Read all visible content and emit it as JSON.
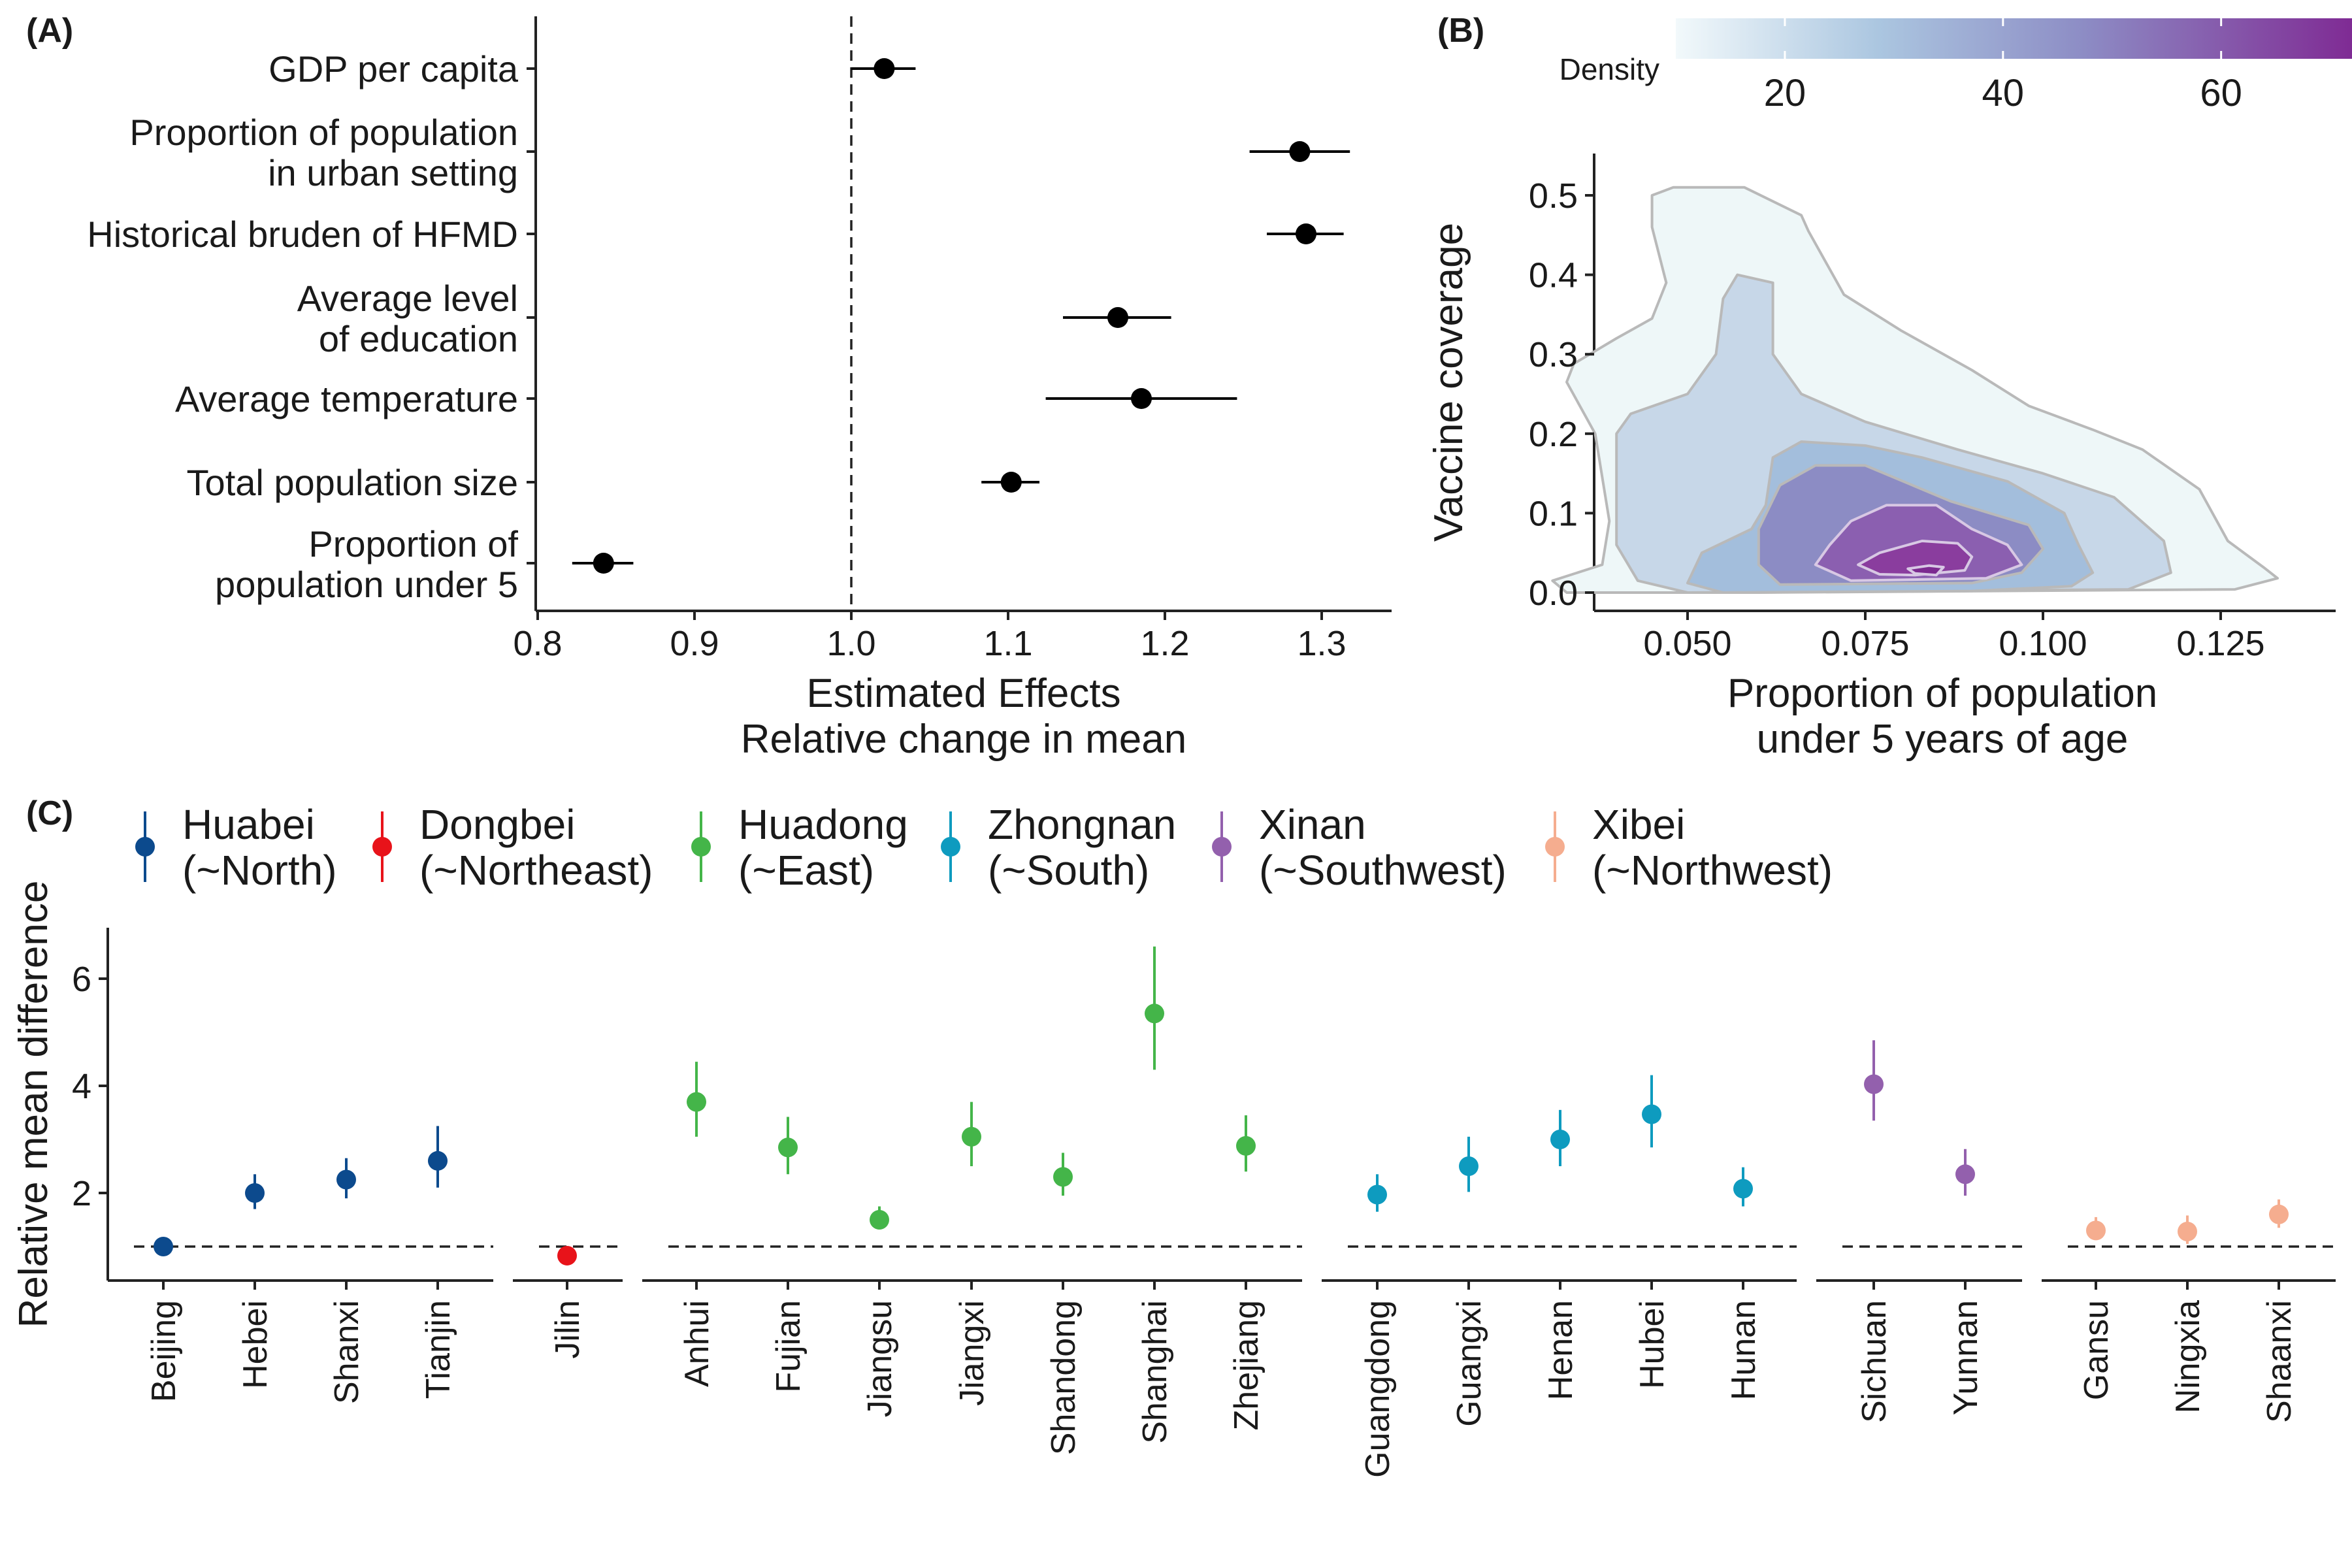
{
  "panels": {
    "a": "(A)",
    "b": "(B)",
    "c": "(C)"
  },
  "chart_data": [
    {
      "type": "forest",
      "panel": "(A)",
      "xlabel": "Estimated Effects",
      "xlabel2": "Relative change in mean",
      "xlim": [
        0.8,
        1.35
      ],
      "xticks": [
        "0.8",
        "0.9",
        "1.0",
        "1.1",
        "1.2",
        "1.3"
      ],
      "reference_line": 1.0,
      "rows": [
        {
          "label": [
            "GDP per capita"
          ],
          "estimate": 1.021,
          "low": 1.0,
          "high": 1.041
        },
        {
          "label": [
            "Proportion of population",
            "in urban setting"
          ],
          "estimate": 1.286,
          "low": 1.254,
          "high": 1.318
        },
        {
          "label": [
            "Historical bruden of HFMD"
          ],
          "estimate": 1.29,
          "low": 1.265,
          "high": 1.314
        },
        {
          "label": [
            "Average level",
            "of education"
          ],
          "estimate": 1.17,
          "low": 1.135,
          "high": 1.204
        },
        {
          "label": [
            "Average temperature"
          ],
          "estimate": 1.185,
          "low": 1.124,
          "high": 1.246
        },
        {
          "label": [
            "Total population size"
          ],
          "estimate": 1.102,
          "low": 1.083,
          "high": 1.12
        },
        {
          "label": [
            "Proportion of",
            "population under 5"
          ],
          "estimate": 0.842,
          "low": 0.822,
          "high": 0.861
        }
      ]
    },
    {
      "type": "density_contour",
      "panel": "(B)",
      "xlabel": "Proportion of population",
      "xlabel2": "under 5 years of age",
      "ylabel": "Vaccine coverage",
      "xlim": [
        0.025,
        0.14
      ],
      "ylim": [
        -0.02,
        0.55
      ],
      "xticks": [
        "0.050",
        "0.075",
        "0.100",
        "0.125"
      ],
      "yticks": [
        "0.0",
        "0.1",
        "0.2",
        "0.3",
        "0.4",
        "0.5"
      ],
      "legend_title": "Density",
      "legend_ticks": [
        "20",
        "40",
        "60"
      ],
      "legend_range": [
        10,
        72
      ],
      "colors": [
        "#eef7f8",
        "#c7d7e8",
        "#a3bedc",
        "#8c8cc4",
        "#8b5fb0",
        "#8a3d9e",
        "#7c2a90"
      ],
      "contour_levels": [
        10,
        20,
        30,
        40,
        50,
        60
      ],
      "contours": [
        [
          [
            0.048,
            0.51
          ],
          [
            0.058,
            0.51
          ],
          [
            0.066,
            0.475
          ],
          [
            0.067,
            0.455
          ],
          [
            0.072,
            0.375
          ],
          [
            0.08,
            0.33
          ],
          [
            0.09,
            0.28
          ],
          [
            0.098,
            0.235
          ],
          [
            0.107,
            0.205
          ],
          [
            0.114,
            0.18
          ],
          [
            0.122,
            0.13
          ],
          [
            0.126,
            0.065
          ],
          [
            0.131,
            0.032
          ],
          [
            0.133,
            0.018
          ],
          [
            0.127,
            0.004
          ],
          [
            0.06,
            0.0
          ],
          [
            0.033,
            0.0
          ],
          [
            0.031,
            0.015
          ],
          [
            0.038,
            0.035
          ],
          [
            0.039,
            0.09
          ],
          [
            0.037,
            0.2
          ],
          [
            0.033,
            0.265
          ],
          [
            0.034,
            0.288
          ],
          [
            0.04,
            0.32
          ],
          [
            0.045,
            0.345
          ],
          [
            0.047,
            0.39
          ],
          [
            0.045,
            0.46
          ],
          [
            0.045,
            0.5
          ],
          [
            0.048,
            0.51
          ]
        ],
        [
          [
            0.057,
            0.4
          ],
          [
            0.062,
            0.39
          ],
          [
            0.062,
            0.3
          ],
          [
            0.066,
            0.25
          ],
          [
            0.075,
            0.215
          ],
          [
            0.088,
            0.18
          ],
          [
            0.1,
            0.15
          ],
          [
            0.11,
            0.12
          ],
          [
            0.117,
            0.065
          ],
          [
            0.118,
            0.025
          ],
          [
            0.112,
            0.004
          ],
          [
            0.05,
            0.0
          ],
          [
            0.043,
            0.015
          ],
          [
            0.04,
            0.06
          ],
          [
            0.04,
            0.125
          ],
          [
            0.04,
            0.2
          ],
          [
            0.042,
            0.225
          ],
          [
            0.05,
            0.25
          ],
          [
            0.054,
            0.3
          ],
          [
            0.055,
            0.37
          ],
          [
            0.057,
            0.4
          ]
        ],
        [
          [
            0.061,
            0.11
          ],
          [
            0.062,
            0.17
          ],
          [
            0.066,
            0.19
          ],
          [
            0.075,
            0.185
          ],
          [
            0.083,
            0.17
          ],
          [
            0.095,
            0.14
          ],
          [
            0.103,
            0.1
          ],
          [
            0.105,
            0.06
          ],
          [
            0.107,
            0.025
          ],
          [
            0.104,
            0.008
          ],
          [
            0.09,
            0.002
          ],
          [
            0.055,
            0.0
          ],
          [
            0.05,
            0.012
          ],
          [
            0.052,
            0.05
          ],
          [
            0.059,
            0.08
          ],
          [
            0.061,
            0.11
          ]
        ],
        [
          [
            0.063,
            0.135
          ],
          [
            0.068,
            0.16
          ],
          [
            0.075,
            0.16
          ],
          [
            0.083,
            0.13
          ],
          [
            0.087,
            0.115
          ],
          [
            0.098,
            0.085
          ],
          [
            0.1,
            0.055
          ],
          [
            0.097,
            0.025
          ],
          [
            0.09,
            0.012
          ],
          [
            0.063,
            0.01
          ],
          [
            0.06,
            0.035
          ],
          [
            0.06,
            0.08
          ],
          [
            0.063,
            0.135
          ]
        ],
        [
          [
            0.073,
            0.09
          ],
          [
            0.078,
            0.11
          ],
          [
            0.085,
            0.11
          ],
          [
            0.09,
            0.08
          ],
          [
            0.095,
            0.06
          ],
          [
            0.097,
            0.035
          ],
          [
            0.092,
            0.018
          ],
          [
            0.073,
            0.015
          ],
          [
            0.068,
            0.035
          ],
          [
            0.07,
            0.06
          ],
          [
            0.073,
            0.09
          ]
        ],
        [
          [
            0.077,
            0.05
          ],
          [
            0.083,
            0.065
          ],
          [
            0.088,
            0.062
          ],
          [
            0.09,
            0.045
          ],
          [
            0.089,
            0.028
          ],
          [
            0.082,
            0.022
          ],
          [
            0.077,
            0.023
          ],
          [
            0.074,
            0.035
          ],
          [
            0.077,
            0.05
          ]
        ],
        [
          [
            0.081,
            0.03
          ],
          [
            0.084,
            0.034
          ],
          [
            0.086,
            0.032
          ],
          [
            0.085,
            0.022
          ],
          [
            0.082,
            0.024
          ],
          [
            0.081,
            0.03
          ]
        ]
      ]
    },
    {
      "type": "dot_errorbar",
      "panel": "(C)",
      "ylabel": "Relative mean difference",
      "ylim": [
        0.0,
        7.0
      ],
      "yticks": [
        "2",
        "4",
        "6"
      ],
      "reference_line": 1.0,
      "series": [
        {
          "name": "Huabei",
          "subtitle": "(~North)",
          "color": "#0c4a8d",
          "points": [
            {
              "x": "Beijing",
              "y": 1.0,
              "low": 0.96,
              "high": 1.04
            },
            {
              "x": "Hebei",
              "y": 2.0,
              "low": 1.7,
              "high": 2.35
            },
            {
              "x": "Shanxi",
              "y": 2.25,
              "low": 1.9,
              "high": 2.65
            },
            {
              "x": "Tianjin",
              "y": 2.6,
              "low": 2.1,
              "high": 3.25
            }
          ]
        },
        {
          "name": "Dongbei",
          "subtitle": "(~Northeast)",
          "color": "#e8131a",
          "points": [
            {
              "x": "Jilin",
              "y": 0.83,
              "low": 0.78,
              "high": 0.88
            }
          ]
        },
        {
          "name": "Huadong",
          "subtitle": "(~East)",
          "color": "#44b549",
          "points": [
            {
              "x": "Anhui",
              "y": 3.7,
              "low": 3.05,
              "high": 4.45
            },
            {
              "x": "Fujian",
              "y": 2.85,
              "low": 2.35,
              "high": 3.42
            },
            {
              "x": "Jiangsu",
              "y": 1.5,
              "low": 1.32,
              "high": 1.75
            },
            {
              "x": "Jiangxi",
              "y": 3.05,
              "low": 2.5,
              "high": 3.7
            },
            {
              "x": "Shandong",
              "y": 2.3,
              "low": 1.95,
              "high": 2.75
            },
            {
              "x": "Shanghai",
              "y": 5.35,
              "low": 4.3,
              "high": 6.6
            },
            {
              "x": "Zhejiang",
              "y": 2.88,
              "low": 2.4,
              "high": 3.45
            }
          ]
        },
        {
          "name": "Zhongnan",
          "subtitle": "(~South)",
          "color": "#0e9bbf",
          "points": [
            {
              "x": "Guangdong",
              "y": 1.97,
              "low": 1.65,
              "high": 2.35
            },
            {
              "x": "Guangxi",
              "y": 2.5,
              "low": 2.02,
              "high": 3.05
            },
            {
              "x": "Henan",
              "y": 3.0,
              "low": 2.5,
              "high": 3.55
            },
            {
              "x": "Hubei",
              "y": 3.47,
              "low": 2.85,
              "high": 4.2
            },
            {
              "x": "Hunan",
              "y": 2.08,
              "low": 1.75,
              "high": 2.48
            }
          ]
        },
        {
          "name": "Xinan",
          "subtitle": "(~Southwest)",
          "color": "#9360ad",
          "points": [
            {
              "x": "Sichuan",
              "y": 4.03,
              "low": 3.35,
              "high": 4.85
            },
            {
              "x": "Yunnan",
              "y": 2.35,
              "low": 1.95,
              "high": 2.82
            }
          ]
        },
        {
          "name": "Xibei",
          "subtitle": "(~Northwest)",
          "color": "#f5ad8f",
          "points": [
            {
              "x": "Gansu",
              "y": 1.3,
              "low": 1.12,
              "high": 1.55
            },
            {
              "x": "Ningxia",
              "y": 1.28,
              "low": 1.05,
              "high": 1.58
            },
            {
              "x": "Shaanxi",
              "y": 1.6,
              "low": 1.35,
              "high": 1.88
            }
          ]
        }
      ]
    }
  ]
}
